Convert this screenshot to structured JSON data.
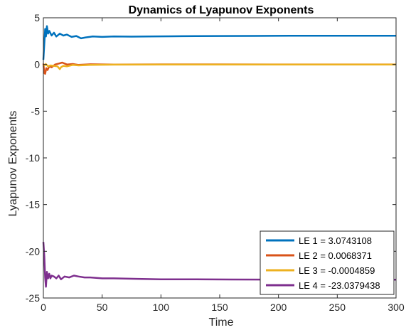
{
  "chart_data": {
    "type": "line",
    "title": "Dynamics of Lyapunov Exponents",
    "xlabel": "Time",
    "ylabel": "Lyapunov Exponents",
    "xlim": [
      0,
      300
    ],
    "ylim": [
      -25,
      5
    ],
    "xticks": [
      0,
      50,
      100,
      150,
      200,
      250,
      300
    ],
    "yticks": [
      5,
      0,
      -5,
      -10,
      -15,
      -20,
      -25
    ],
    "grid": false,
    "legend_position": "bottom-right",
    "series": [
      {
        "name": "LE 1 = 3.0743108",
        "color": "#0072BD",
        "points": [
          [
            0,
            0.5
          ],
          [
            0.8,
            2.2
          ],
          [
            1.5,
            3.8
          ],
          [
            2.2,
            3.0
          ],
          [
            3,
            4.1
          ],
          [
            4,
            3.3
          ],
          [
            5,
            3.6
          ],
          [
            7,
            3.1
          ],
          [
            9,
            3.4
          ],
          [
            11,
            3.0
          ],
          [
            14,
            3.3
          ],
          [
            17,
            3.1
          ],
          [
            20,
            3.2
          ],
          [
            24,
            2.95
          ],
          [
            28,
            3.05
          ],
          [
            32,
            2.8
          ],
          [
            36,
            2.9
          ],
          [
            42,
            3.0
          ],
          [
            50,
            2.95
          ],
          [
            60,
            3.0
          ],
          [
            75,
            2.98
          ],
          [
            90,
            3.0
          ],
          [
            110,
            3.02
          ],
          [
            130,
            3.04
          ],
          [
            150,
            3.05
          ],
          [
            180,
            3.06
          ],
          [
            210,
            3.07
          ],
          [
            250,
            3.07
          ],
          [
            300,
            3.07
          ]
        ]
      },
      {
        "name": "LE 2 = 0.0068371",
        "color": "#D95319",
        "points": [
          [
            0,
            0.1
          ],
          [
            0.8,
            -0.9
          ],
          [
            1.5,
            -1.0
          ],
          [
            2.5,
            -0.4
          ],
          [
            3.5,
            -0.6
          ],
          [
            5,
            -0.2
          ],
          [
            7,
            -0.3
          ],
          [
            10,
            0.0
          ],
          [
            13,
            0.1
          ],
          [
            16,
            0.2
          ],
          [
            20,
            0.0
          ],
          [
            25,
            0.05
          ],
          [
            30,
            -0.05
          ],
          [
            40,
            0.02
          ],
          [
            60,
            0.0
          ],
          [
            100,
            0.01
          ],
          [
            150,
            0.01
          ],
          [
            200,
            0.007
          ],
          [
            300,
            0.007
          ]
        ]
      },
      {
        "name": "LE 3 = -0.0004859",
        "color": "#EDB120",
        "points": [
          [
            0,
            0.0
          ],
          [
            1,
            -0.1
          ],
          [
            2,
            0.05
          ],
          [
            4,
            -0.2
          ],
          [
            6,
            -0.1
          ],
          [
            9,
            -0.15
          ],
          [
            12,
            -0.2
          ],
          [
            14,
            -0.5
          ],
          [
            15,
            -0.3
          ],
          [
            17,
            -0.15
          ],
          [
            20,
            -0.2
          ],
          [
            25,
            -0.05
          ],
          [
            30,
            -0.1
          ],
          [
            40,
            -0.05
          ],
          [
            60,
            -0.02
          ],
          [
            100,
            -0.01
          ],
          [
            150,
            0.0
          ],
          [
            200,
            0.0
          ],
          [
            300,
            -0.0005
          ]
        ]
      },
      {
        "name": "LE 4 = -23.0379438",
        "color": "#7E2F8E",
        "points": [
          [
            0,
            -19.0
          ],
          [
            0.8,
            -20.5
          ],
          [
            1.5,
            -22.8
          ],
          [
            2.2,
            -23.8
          ],
          [
            3,
            -22.2
          ],
          [
            4,
            -22.9
          ],
          [
            5,
            -22.4
          ],
          [
            6,
            -22.9
          ],
          [
            7,
            -22.6
          ],
          [
            9,
            -22.7
          ],
          [
            11,
            -22.9
          ],
          [
            13,
            -22.6
          ],
          [
            15,
            -23.0
          ],
          [
            18,
            -22.7
          ],
          [
            22,
            -22.8
          ],
          [
            26,
            -22.6
          ],
          [
            30,
            -22.7
          ],
          [
            35,
            -22.8
          ],
          [
            40,
            -22.8
          ],
          [
            50,
            -22.9
          ],
          [
            60,
            -22.9
          ],
          [
            80,
            -22.95
          ],
          [
            100,
            -23.0
          ],
          [
            130,
            -23.0
          ],
          [
            160,
            -23.02
          ],
          [
            200,
            -23.03
          ],
          [
            250,
            -23.04
          ],
          [
            300,
            -23.04
          ]
        ]
      }
    ]
  }
}
